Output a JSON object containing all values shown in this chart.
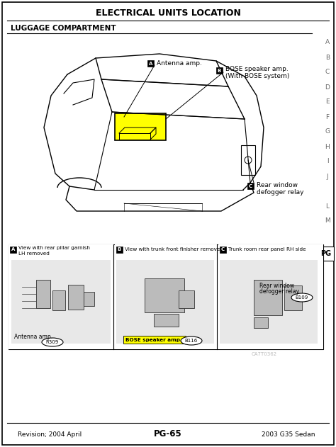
{
  "title": "ELECTRICAL UNITS LOCATION",
  "section": "LUGGAGE COMPARTMENT",
  "page_num": "PG-65",
  "revision": "Revision; 2004 April",
  "model": "2003 G35 Sedan",
  "bg_color": "#ffffff",
  "border_color": "#000000",
  "right_letters": [
    "A",
    "B",
    "C",
    "D",
    "E",
    "F",
    "G",
    "H",
    "I",
    "J",
    "",
    "L",
    "M"
  ],
  "label_A": "Antenna amp.",
  "label_B_line1": "BOSE speaker amp.",
  "label_B_line2": "(With BOSE system)",
  "label_C_line1": "Rear window",
  "label_C_line2": "defogger relay",
  "highlight_color": "#ffff00",
  "sub_panel_A_title1": "View with rear pillar garnish",
  "sub_panel_A_title2": "LH removed",
  "sub_panel_A_label": "Antenna amp.",
  "sub_panel_A_code": "R309",
  "sub_panel_B_title": "View with trunk front finisher removed",
  "sub_panel_B_label": "BOSE speaker amp.",
  "sub_panel_B_code": "B116",
  "sub_panel_C_title": "Trunk room rear panel RH side",
  "sub_panel_C_label1": "Rear window",
  "sub_panel_C_label2": "defogger relay",
  "sub_panel_C_code": "B109",
  "pg_label": "PG",
  "watermark": "CA7T0362"
}
